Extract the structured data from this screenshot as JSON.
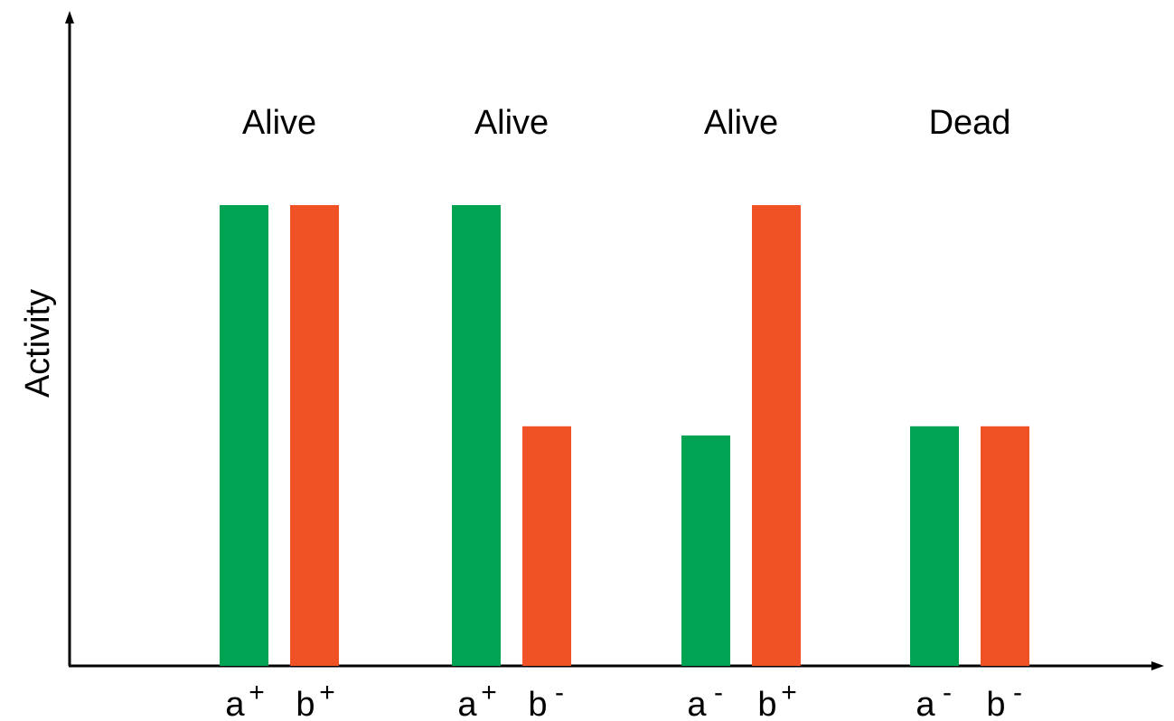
{
  "chart_data": {
    "type": "bar",
    "ylabel": "Activity",
    "xlabel": "",
    "title": "",
    "ylim": [
      0,
      1.3
    ],
    "colors": {
      "a": "#00a352",
      "b": "#f05125",
      "axis": "#000000"
    },
    "groups": [
      {
        "label": "Alive",
        "bars": [
          {
            "series": "a",
            "base": "a",
            "sup": "+",
            "value": 1.0
          },
          {
            "series": "b",
            "base": "b",
            "sup": "+",
            "value": 1.0
          }
        ]
      },
      {
        "label": "Alive",
        "bars": [
          {
            "series": "a",
            "base": "a",
            "sup": "+",
            "value": 1.0
          },
          {
            "series": "b",
            "base": "b",
            "sup": "-",
            "value": 0.52
          }
        ]
      },
      {
        "label": "Alive",
        "bars": [
          {
            "series": "a",
            "base": "a",
            "sup": "-",
            "value": 0.5
          },
          {
            "series": "b",
            "base": "b",
            "sup": "+",
            "value": 1.0
          }
        ]
      },
      {
        "label": "Dead",
        "bars": [
          {
            "series": "a",
            "base": "a",
            "sup": "-",
            "value": 0.52
          },
          {
            "series": "b",
            "base": "b",
            "sup": "-",
            "value": 0.52
          }
        ]
      }
    ],
    "grid": false,
    "legend": "none"
  }
}
